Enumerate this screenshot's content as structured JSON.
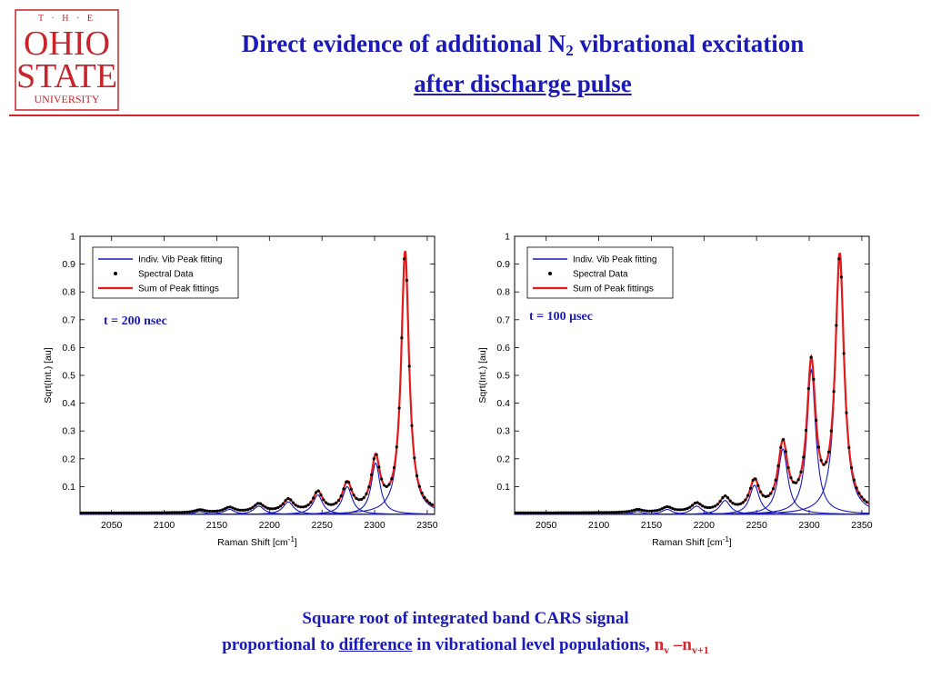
{
  "logo": {
    "top": "T · H · E",
    "line1": "OHIO",
    "line2": "STATE",
    "line3": "UNIVERSITY",
    "color": "#c8242b"
  },
  "slide": {
    "title_pre": "Direct evidence of additional N",
    "title_sub": "2",
    "title_post": " vibrational excitation",
    "title_line2": "after discharge pulse"
  },
  "caption": {
    "line1": "Square root of integrated band CARS signal",
    "pre": "proportional to ",
    "underlined": "difference",
    "mid": " in vibrational level populations, ",
    "n1": "n",
    "s1": "v",
    "dash": " –",
    "n2": "n",
    "s2": "v+1"
  },
  "colors": {
    "title": "#1a1ab8",
    "rule": "#d9242b",
    "fit": "#1a1ab8",
    "sum": "#e11a1a",
    "data": "#000000"
  },
  "chart_data": [
    {
      "type": "line",
      "annotation": "t = 200 nsec",
      "xlabel": "Raman Shift [cm",
      "xlabel_sup": "-1",
      "xlabel_end": "]",
      "ylabel": "Sqrt(Int.) [au]",
      "xlim": [
        2020,
        2357
      ],
      "ylim": [
        0,
        1
      ],
      "xticks": [
        2050,
        2100,
        2150,
        2200,
        2250,
        2300,
        2350
      ],
      "yticks": [
        0.1,
        0.2,
        0.3,
        0.4,
        0.5,
        0.6,
        0.7,
        0.8,
        0.9,
        1
      ],
      "legend": [
        "Indiv. Vib Peak fitting",
        "Spectral Data",
        "Sum of Peak fittings"
      ],
      "legend_position": "top-left",
      "peaks": [
        {
          "center": 2329,
          "height": 0.935,
          "width": 4.5
        },
        {
          "center": 2301,
          "height": 0.185,
          "width": 5
        },
        {
          "center": 2274,
          "height": 0.1,
          "width": 5.5
        },
        {
          "center": 2246,
          "height": 0.07,
          "width": 5.5
        },
        {
          "center": 2218,
          "height": 0.045,
          "width": 6
        },
        {
          "center": 2190,
          "height": 0.03,
          "width": 6
        },
        {
          "center": 2162,
          "height": 0.018,
          "width": 6
        },
        {
          "center": 2134,
          "height": 0.01,
          "width": 6
        }
      ],
      "baseline": 0.005
    },
    {
      "type": "line",
      "annotation": "t = 100 μsec",
      "xlabel": "Raman Shift [cm",
      "xlabel_sup": "-1",
      "xlabel_end": "]",
      "ylabel": "Sqrt(Int.) [au]",
      "xlim": [
        2020,
        2357
      ],
      "ylim": [
        0,
        1
      ],
      "xticks": [
        2050,
        2100,
        2150,
        2200,
        2250,
        2300,
        2350
      ],
      "yticks": [
        0.1,
        0.2,
        0.3,
        0.4,
        0.5,
        0.6,
        0.7,
        0.8,
        0.9,
        1
      ],
      "legend": [
        "Indiv. Vib Peak fitting",
        "Spectral Data",
        "Sum of Peak fittings"
      ],
      "legend_position": "top-left",
      "peaks": [
        {
          "center": 2329,
          "height": 0.915,
          "width": 5
        },
        {
          "center": 2302,
          "height": 0.52,
          "width": 5
        },
        {
          "center": 2275,
          "height": 0.235,
          "width": 5.5
        },
        {
          "center": 2248,
          "height": 0.105,
          "width": 5.5
        },
        {
          "center": 2220,
          "height": 0.05,
          "width": 6
        },
        {
          "center": 2193,
          "height": 0.03,
          "width": 6
        },
        {
          "center": 2165,
          "height": 0.018,
          "width": 6
        },
        {
          "center": 2137,
          "height": 0.01,
          "width": 6
        }
      ],
      "baseline": 0.005
    }
  ]
}
